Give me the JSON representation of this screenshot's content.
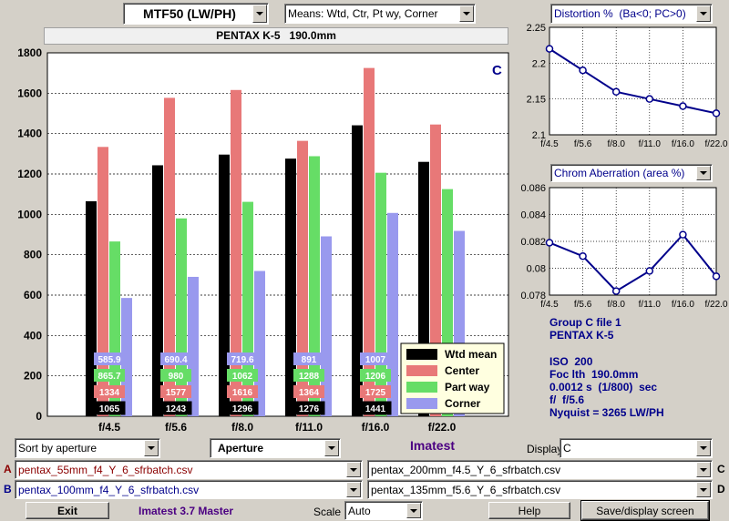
{
  "top": {
    "metric_select": "MTF50 (LW/PH)",
    "means_select": "Means: Wtd, Ctr, Pt wy, Corner",
    "camera_title": "PENTAX K-5   190.0mm"
  },
  "main_chart": {
    "panel_letter": "C",
    "y_ticks": [
      "0",
      "200",
      "400",
      "600",
      "800",
      "1000",
      "1200",
      "1400",
      "1600",
      "1800"
    ],
    "legend": [
      "Wtd mean",
      "Center",
      "Part way",
      "Corner"
    ]
  },
  "chart_data": [
    {
      "type": "bar",
      "title": "",
      "categories": [
        "f/4.5",
        "f/5.6",
        "f/8.0",
        "f/11.0",
        "f/16.0",
        "f/22.0"
      ],
      "ylim": [
        0,
        1800
      ],
      "series": [
        {
          "name": "Wtd mean",
          "color": "#000000",
          "values": [
            1065,
            1243,
            1296,
            1276,
            1441,
            1260
          ],
          "labels": [
            "1065",
            "1243",
            "1296",
            "1276",
            "1441",
            ""
          ]
        },
        {
          "name": "Center",
          "color": "#e87878",
          "values": [
            1334,
            1577,
            1616,
            1364,
            1725,
            1445
          ],
          "labels": [
            "1334",
            "1577",
            "1616",
            "1364",
            "1725",
            ""
          ]
        },
        {
          "name": "Part way",
          "color": "#66dd66",
          "values": [
            865.7,
            980,
            1062,
            1288,
            1206,
            1125
          ],
          "labels": [
            "865.7",
            "980",
            "1062",
            "1288",
            "1206",
            ""
          ]
        },
        {
          "name": "Corner",
          "color": "#9999ee",
          "values": [
            585.9,
            690.4,
            719.6,
            891,
            1007,
            918
          ],
          "labels": [
            "585.9",
            "690.4",
            "719.6",
            "891",
            "1007",
            ""
          ]
        }
      ]
    },
    {
      "type": "line",
      "title": "Distortion %  (Ba<0; PC>0)",
      "categories": [
        "f/4.5",
        "f/5.6",
        "f/8.0",
        "f/11.0",
        "f/16.0",
        "f/22.0"
      ],
      "ylim": [
        2.1,
        2.25
      ],
      "y_ticks": [
        "2.1",
        "2.15",
        "2.2",
        "2.25"
      ],
      "values": [
        2.22,
        2.19,
        2.16,
        2.15,
        2.14,
        2.13
      ],
      "color": "#00008b"
    },
    {
      "type": "line",
      "title": "Chrom Aberration (area %)",
      "categories": [
        "f/4.5",
        "f/5.6",
        "f/8.0",
        "f/11.0",
        "f/16.0",
        "f/22.0"
      ],
      "ylim": [
        0.078,
        0.086
      ],
      "y_ticks": [
        "0.078",
        "0.08",
        "0.082",
        "0.084",
        "0.086"
      ],
      "values": [
        0.0819,
        0.0809,
        0.0783,
        0.0798,
        0.0825,
        0.0794
      ],
      "color": "#00008b"
    }
  ],
  "right_panel": {
    "distortion_select": "Distortion %  (Ba<0; PC>0)",
    "ca_select": "Chrom Aberration (area %)"
  },
  "info": {
    "line1": "Group C file 1",
    "line2": "PENTAX K-5",
    "line3": "ISO  200",
    "line4": "Foc lth  190.0mm",
    "line5": "0.0012 s  (1/800)  sec",
    "line6": "f/  f/5.6",
    "line7": "Nyquist = 3265 LW/PH"
  },
  "controls": {
    "sort_select": "Sort by aperture",
    "xaxis_select": "Aperture",
    "brand": "Imatest",
    "display_label": "Display",
    "display_select": "C",
    "label_a": "A",
    "label_b": "B",
    "label_c": "C",
    "label_d": "D",
    "file_a": "pentax_55mm_f4_Y_6_sfrbatch.csv",
    "file_b": "pentax_100mm_f4_Y_6_sfrbatch.csv",
    "file_c": "pentax_200mm_f4.5_Y_6_sfrbatch.csv",
    "file_d": "pentax_135mm_f5.6_Y_6_sfrbatch.csv"
  },
  "bottom": {
    "exit": "Exit",
    "version": "Imatest 3.7 Master",
    "scale_label": "Scale",
    "scale_select": "Auto",
    "help": "Help",
    "save": "Save/display screen"
  }
}
